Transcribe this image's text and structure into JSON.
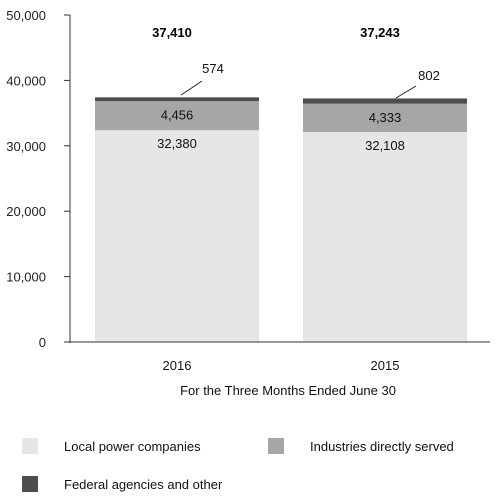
{
  "chart_data": {
    "type": "bar",
    "stacked": true,
    "categories": [
      "2016",
      "2015"
    ],
    "series": [
      {
        "name": "Local power companies",
        "values": [
          32380,
          32108
        ],
        "color": "#e6e6e6"
      },
      {
        "name": "Industries directly served",
        "values": [
          4456,
          4333
        ],
        "color": "#a6a6a6"
      },
      {
        "name": "Federal agencies and other",
        "values": [
          574,
          802
        ],
        "color": "#4d4d4d"
      }
    ],
    "totals": [
      "37,410",
      "37,243"
    ],
    "data_labels": [
      [
        "32,380",
        "4,456",
        "574"
      ],
      [
        "32,108",
        "4,333",
        "802"
      ]
    ],
    "xlabel": "For the Three Months Ended June 30",
    "ylabel": "",
    "ylim": [
      0,
      50000
    ],
    "yticks": [
      0,
      10000,
      20000,
      30000,
      40000,
      50000
    ],
    "ytick_labels": [
      "0",
      "10,000",
      "20,000",
      "30,000",
      "40,000",
      "50,000"
    ],
    "grid": false,
    "legend_position": "bottom"
  }
}
